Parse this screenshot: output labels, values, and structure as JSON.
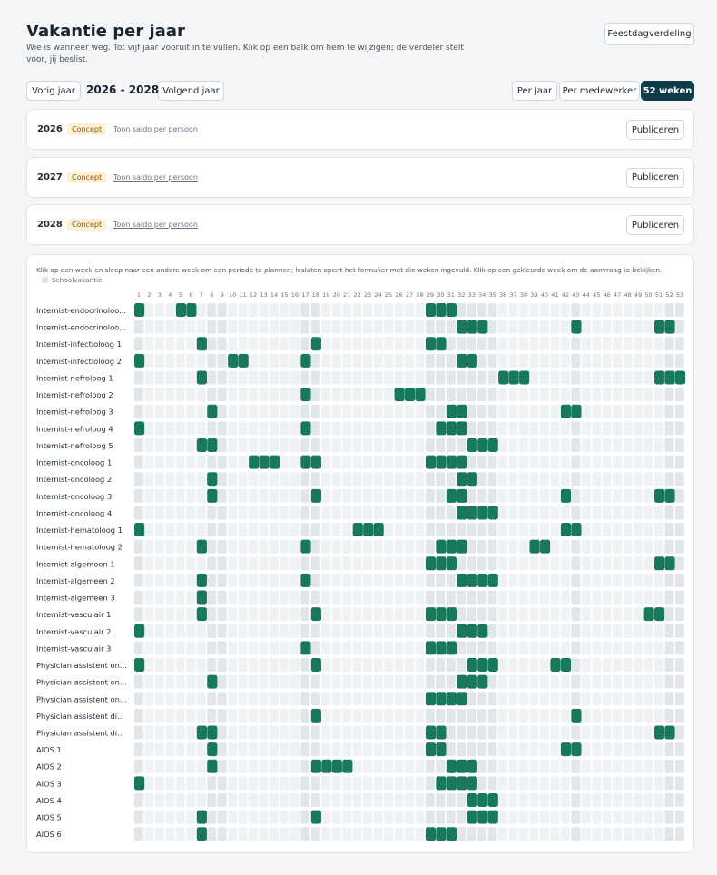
{
  "header": {
    "title": "Vakantie per jaar",
    "subtitle": "Wie is wanneer weg. Tot vijf jaar vooruit in te vullen. Klik op een balk om hem te wijzigen; de verdeler stelt voor, jij beslist.",
    "holiday_button": "Feestdagverdeling"
  },
  "nav": {
    "prev": "Vorig jaar",
    "range": "2026 - 2028",
    "next": "Volgend jaar",
    "views": [
      "Per jaar",
      "Per medewerker",
      "52 weken"
    ]
  },
  "years": [
    {
      "year": "2026",
      "status": "Concept",
      "link": "Toon saldo per persoon",
      "action": "Publiceren"
    },
    {
      "year": "2027",
      "status": "Concept",
      "link": "Toon saldo per persoon",
      "action": "Publiceren"
    },
    {
      "year": "2028",
      "status": "Concept",
      "link": "Toon saldo per persoon",
      "action": "Publiceren"
    }
  ],
  "grid": {
    "instruction": "Klik op een week en sleep naar een andere week om een periode te plannen; loslaten opent het formulier met die weken ingevuld. Klik op een gekleurde week om de aanvraag te bekijken.",
    "legend": "Schoolvakantie",
    "weeks": [
      1,
      2,
      3,
      4,
      5,
      6,
      7,
      8,
      9,
      10,
      11,
      12,
      13,
      14,
      15,
      16,
      17,
      18,
      19,
      20,
      21,
      22,
      23,
      24,
      25,
      26,
      27,
      28,
      29,
      30,
      31,
      32,
      33,
      34,
      35,
      36,
      37,
      38,
      39,
      40,
      41,
      42,
      43,
      44,
      45,
      46,
      47,
      48,
      49,
      50,
      51,
      52,
      53
    ],
    "school_weeks": [
      1,
      8,
      9,
      17,
      18,
      29,
      30,
      31,
      32,
      33,
      34,
      35,
      43,
      52,
      53
    ],
    "rows": [
      {
        "name": "Internist-endocrinoloo...",
        "booked": [
          1,
          5,
          6,
          29,
          30,
          31
        ]
      },
      {
        "name": "Internist-endocrinoloo...",
        "booked": [
          32,
          33,
          34,
          43,
          51,
          52
        ]
      },
      {
        "name": "Internist-infectioloog 1",
        "booked": [
          7,
          18,
          29,
          30
        ]
      },
      {
        "name": "Internist-infectioloog 2",
        "booked": [
          1,
          10,
          11,
          17,
          32,
          33
        ]
      },
      {
        "name": "Internist-nefroloog 1",
        "booked": [
          7,
          36,
          37,
          38,
          51,
          52,
          53
        ]
      },
      {
        "name": "Internist-nefroloog 2",
        "booked": [
          17,
          26,
          27,
          28
        ]
      },
      {
        "name": "Internist-nefroloog 3",
        "booked": [
          8,
          31,
          32,
          42,
          43
        ]
      },
      {
        "name": "Internist-nefroloog 4",
        "booked": [
          1,
          17,
          30,
          31,
          32
        ]
      },
      {
        "name": "Internist-nefroloog 5",
        "booked": [
          7,
          8,
          33,
          34,
          35
        ]
      },
      {
        "name": "Internist-oncoloog 1",
        "booked": [
          12,
          13,
          14,
          17,
          18,
          29,
          30,
          31,
          32
        ]
      },
      {
        "name": "Internist-oncoloog 2",
        "booked": [
          8,
          32,
          33
        ]
      },
      {
        "name": "Internist-oncoloog 3",
        "booked": [
          8,
          18,
          31,
          32,
          42,
          51,
          52
        ]
      },
      {
        "name": "Internist-oncoloog 4",
        "booked": [
          32,
          33,
          34,
          35
        ]
      },
      {
        "name": "Internist-hematoloog 1",
        "booked": [
          1,
          22,
          23,
          24,
          42,
          43
        ]
      },
      {
        "name": "Internist-hematoloog 2",
        "booked": [
          7,
          17,
          30,
          31,
          32,
          39,
          40
        ]
      },
      {
        "name": "Internist-algemeen 1",
        "booked": [
          29,
          30,
          31,
          51,
          52
        ]
      },
      {
        "name": "Internist-algemeen 2",
        "booked": [
          7,
          17,
          32,
          33,
          34,
          35
        ]
      },
      {
        "name": "Internist-algemeen 3",
        "booked": [
          7
        ]
      },
      {
        "name": "Internist-vasculair 1",
        "booked": [
          7,
          18,
          29,
          30,
          31,
          50,
          51
        ]
      },
      {
        "name": "Internist-vasculair 2",
        "booked": [
          1,
          32,
          33,
          34
        ]
      },
      {
        "name": "Internist-vasculair 3",
        "booked": [
          17,
          29,
          30,
          31
        ]
      },
      {
        "name": "Physician assistent on...",
        "booked": [
          1,
          18,
          33,
          34,
          35,
          41,
          42
        ]
      },
      {
        "name": "Physician assistent on...",
        "booked": [
          8,
          32,
          33,
          34
        ]
      },
      {
        "name": "Physician assistent on...",
        "booked": [
          29,
          30,
          31,
          32
        ]
      },
      {
        "name": "Physician assistent di...",
        "booked": [
          18,
          43
        ]
      },
      {
        "name": "Physician assistent di...",
        "booked": [
          7,
          8,
          29,
          30,
          51,
          52
        ]
      },
      {
        "name": "AIOS 1",
        "booked": [
          8,
          29,
          30,
          42,
          43
        ]
      },
      {
        "name": "AIOS 2",
        "booked": [
          8,
          18,
          19,
          20,
          21,
          31,
          32,
          33
        ]
      },
      {
        "name": "AIOS 3",
        "booked": [
          1,
          30,
          31,
          32,
          33
        ]
      },
      {
        "name": "AIOS 4",
        "booked": [
          33,
          34,
          35
        ]
      },
      {
        "name": "AIOS 5",
        "booked": [
          7,
          18,
          33,
          34,
          35
        ]
      },
      {
        "name": "AIOS 6",
        "booked": [
          7,
          29,
          30,
          31
        ]
      }
    ]
  }
}
